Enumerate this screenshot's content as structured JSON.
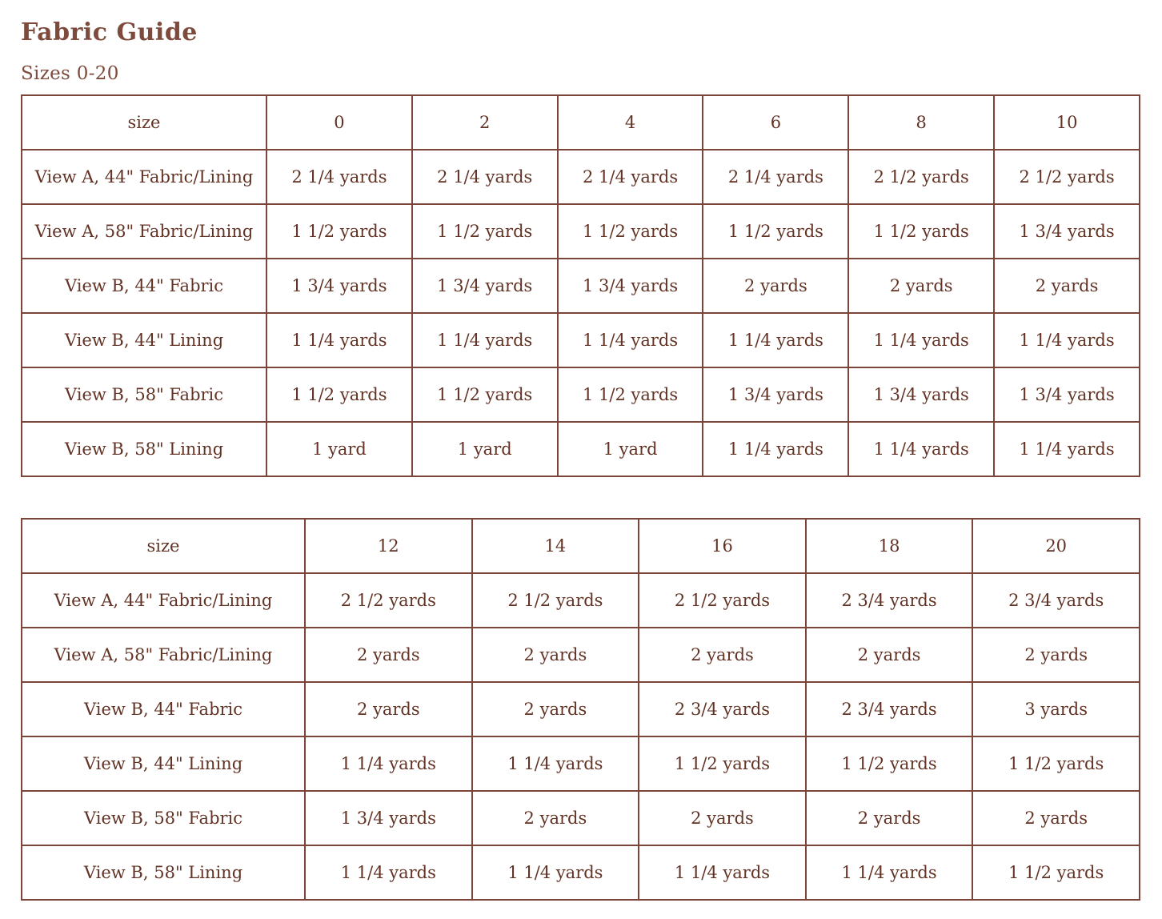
{
  "page": {
    "title": "Fabric Guide",
    "subtitle": "Sizes 0-20"
  },
  "colors": {
    "heading_text": "#7d4a3c",
    "table_text": "#623325",
    "table_border": "#7d4539",
    "background": "#ffffff"
  },
  "tables": [
    {
      "name": "sizes-0-10",
      "header": [
        "size",
        "0",
        "2",
        "4",
        "6",
        "8",
        "10"
      ],
      "rows": [
        {
          "label": "View A, 44\" Fabric/Lining",
          "values": [
            "2 1/4 yards",
            "2 1/4 yards",
            "2 1/4 yards",
            "2 1/4 yards",
            "2 1/2 yards",
            "2 1/2 yards"
          ]
        },
        {
          "label": "View A, 58\" Fabric/Lining",
          "values": [
            "1 1/2 yards",
            "1 1/2 yards",
            "1 1/2 yards",
            "1 1/2 yards",
            "1 1/2 yards",
            "1 3/4 yards"
          ]
        },
        {
          "label": "View B, 44\" Fabric",
          "values": [
            "1 3/4 yards",
            "1 3/4 yards",
            "1 3/4 yards",
            "2 yards",
            "2 yards",
            "2 yards"
          ]
        },
        {
          "label": "View B, 44\" Lining",
          "values": [
            "1 1/4 yards",
            "1 1/4 yards",
            "1 1/4 yards",
            "1 1/4 yards",
            "1 1/4 yards",
            "1 1/4 yards"
          ]
        },
        {
          "label": "View B, 58\" Fabric",
          "values": [
            "1 1/2 yards",
            "1 1/2 yards",
            "1 1/2 yards",
            "1 3/4 yards",
            "1 3/4 yards",
            "1 3/4 yards"
          ]
        },
        {
          "label": "View B, 58\" Lining",
          "values": [
            "1 yard",
            "1 yard",
            "1 yard",
            "1 1/4 yards",
            "1 1/4 yards",
            "1 1/4 yards"
          ]
        }
      ]
    },
    {
      "name": "sizes-12-20",
      "header": [
        "size",
        "12",
        "14",
        "16",
        "18",
        "20"
      ],
      "rows": [
        {
          "label": "View A, 44\" Fabric/Lining",
          "values": [
            "2 1/2 yards",
            "2 1/2 yards",
            "2 1/2 yards",
            "2 3/4 yards",
            "2 3/4 yards"
          ]
        },
        {
          "label": "View A, 58\" Fabric/Lining",
          "values": [
            "2 yards",
            "2 yards",
            "2 yards",
            "2 yards",
            "2 yards"
          ]
        },
        {
          "label": "View B, 44\" Fabric",
          "values": [
            "2 yards",
            "2 yards",
            "2 3/4 yards",
            "2 3/4 yards",
            "3 yards"
          ]
        },
        {
          "label": "View B, 44\" Lining",
          "values": [
            "1 1/4 yards",
            "1 1/4 yards",
            "1 1/2 yards",
            "1 1/2 yards",
            "1 1/2 yards"
          ]
        },
        {
          "label": "View B, 58\" Fabric",
          "values": [
            "1 3/4 yards",
            "2 yards",
            "2 yards",
            "2 yards",
            "2 yards"
          ]
        },
        {
          "label": "View B, 58\" Lining",
          "values": [
            "1 1/4 yards",
            "1 1/4 yards",
            "1 1/4 yards",
            "1 1/4 yards",
            "1 1/2 yards"
          ]
        }
      ]
    }
  ]
}
